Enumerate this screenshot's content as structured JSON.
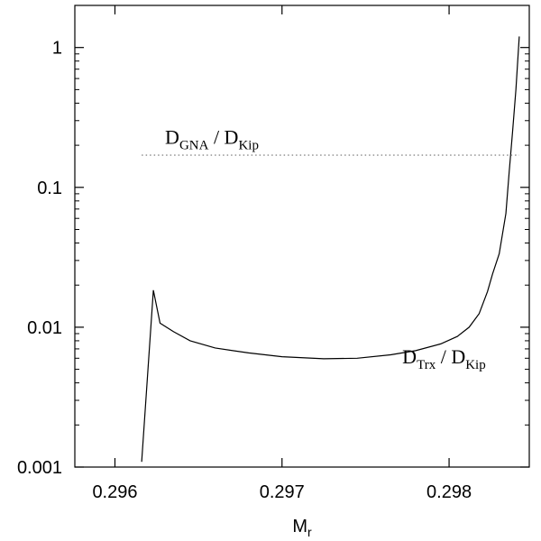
{
  "chart_data": {
    "type": "line",
    "xlabel": "M",
    "xlabel_sub": "r",
    "ylabel": "",
    "xlim": [
      0.29576,
      0.29848
    ],
    "ylim": [
      0.001,
      2.0
    ],
    "yscale": "log",
    "grid": false,
    "x_ticks": [
      {
        "value": 0.296,
        "label": "0.296"
      },
      {
        "value": 0.297,
        "label": "0.297"
      },
      {
        "value": 0.298,
        "label": "0.298"
      }
    ],
    "y_ticks": [
      {
        "value": 0.001,
        "label": "0.001"
      },
      {
        "value": 0.01,
        "label": "0.01"
      },
      {
        "value": 0.1,
        "label": "0.1"
      },
      {
        "value": 1,
        "label": "1"
      }
    ],
    "series": [
      {
        "label_main": "D",
        "label_sub": "Trx",
        "label_sep": " / D",
        "label_sub2": "Kip",
        "label_at": [
          0.29772,
          0.0055
        ],
        "style": "solid",
        "color": "#000000",
        "points": [
          [
            0.29616,
            0.00109
          ],
          [
            0.29623,
            0.0184
          ],
          [
            0.29627,
            0.0107
          ],
          [
            0.29635,
            0.0093
          ],
          [
            0.29645,
            0.008
          ],
          [
            0.2966,
            0.0071
          ],
          [
            0.2968,
            0.00655
          ],
          [
            0.297,
            0.00615
          ],
          [
            0.29725,
            0.00595
          ],
          [
            0.29745,
            0.006
          ],
          [
            0.29765,
            0.00635
          ],
          [
            0.2978,
            0.0068
          ],
          [
            0.29795,
            0.0076
          ],
          [
            0.29805,
            0.0086
          ],
          [
            0.29812,
            0.01
          ],
          [
            0.29818,
            0.0125
          ],
          [
            0.29823,
            0.018
          ],
          [
            0.29826,
            0.024
          ],
          [
            0.2983,
            0.0335
          ],
          [
            0.29834,
            0.065
          ],
          [
            0.29836,
            0.13
          ],
          [
            0.29838,
            0.25
          ],
          [
            0.2984,
            0.5
          ],
          [
            0.29842,
            1.2
          ]
        ]
      },
      {
        "label_main": "D",
        "label_sub": "GNA",
        "label_sep": " / D",
        "label_sub2": "Kip",
        "label_at": [
          0.2963,
          0.205
        ],
        "style": "dotted",
        "color": "#888888",
        "points": [
          [
            0.29616,
            0.17
          ],
          [
            0.29842,
            0.17
          ]
        ]
      }
    ]
  }
}
